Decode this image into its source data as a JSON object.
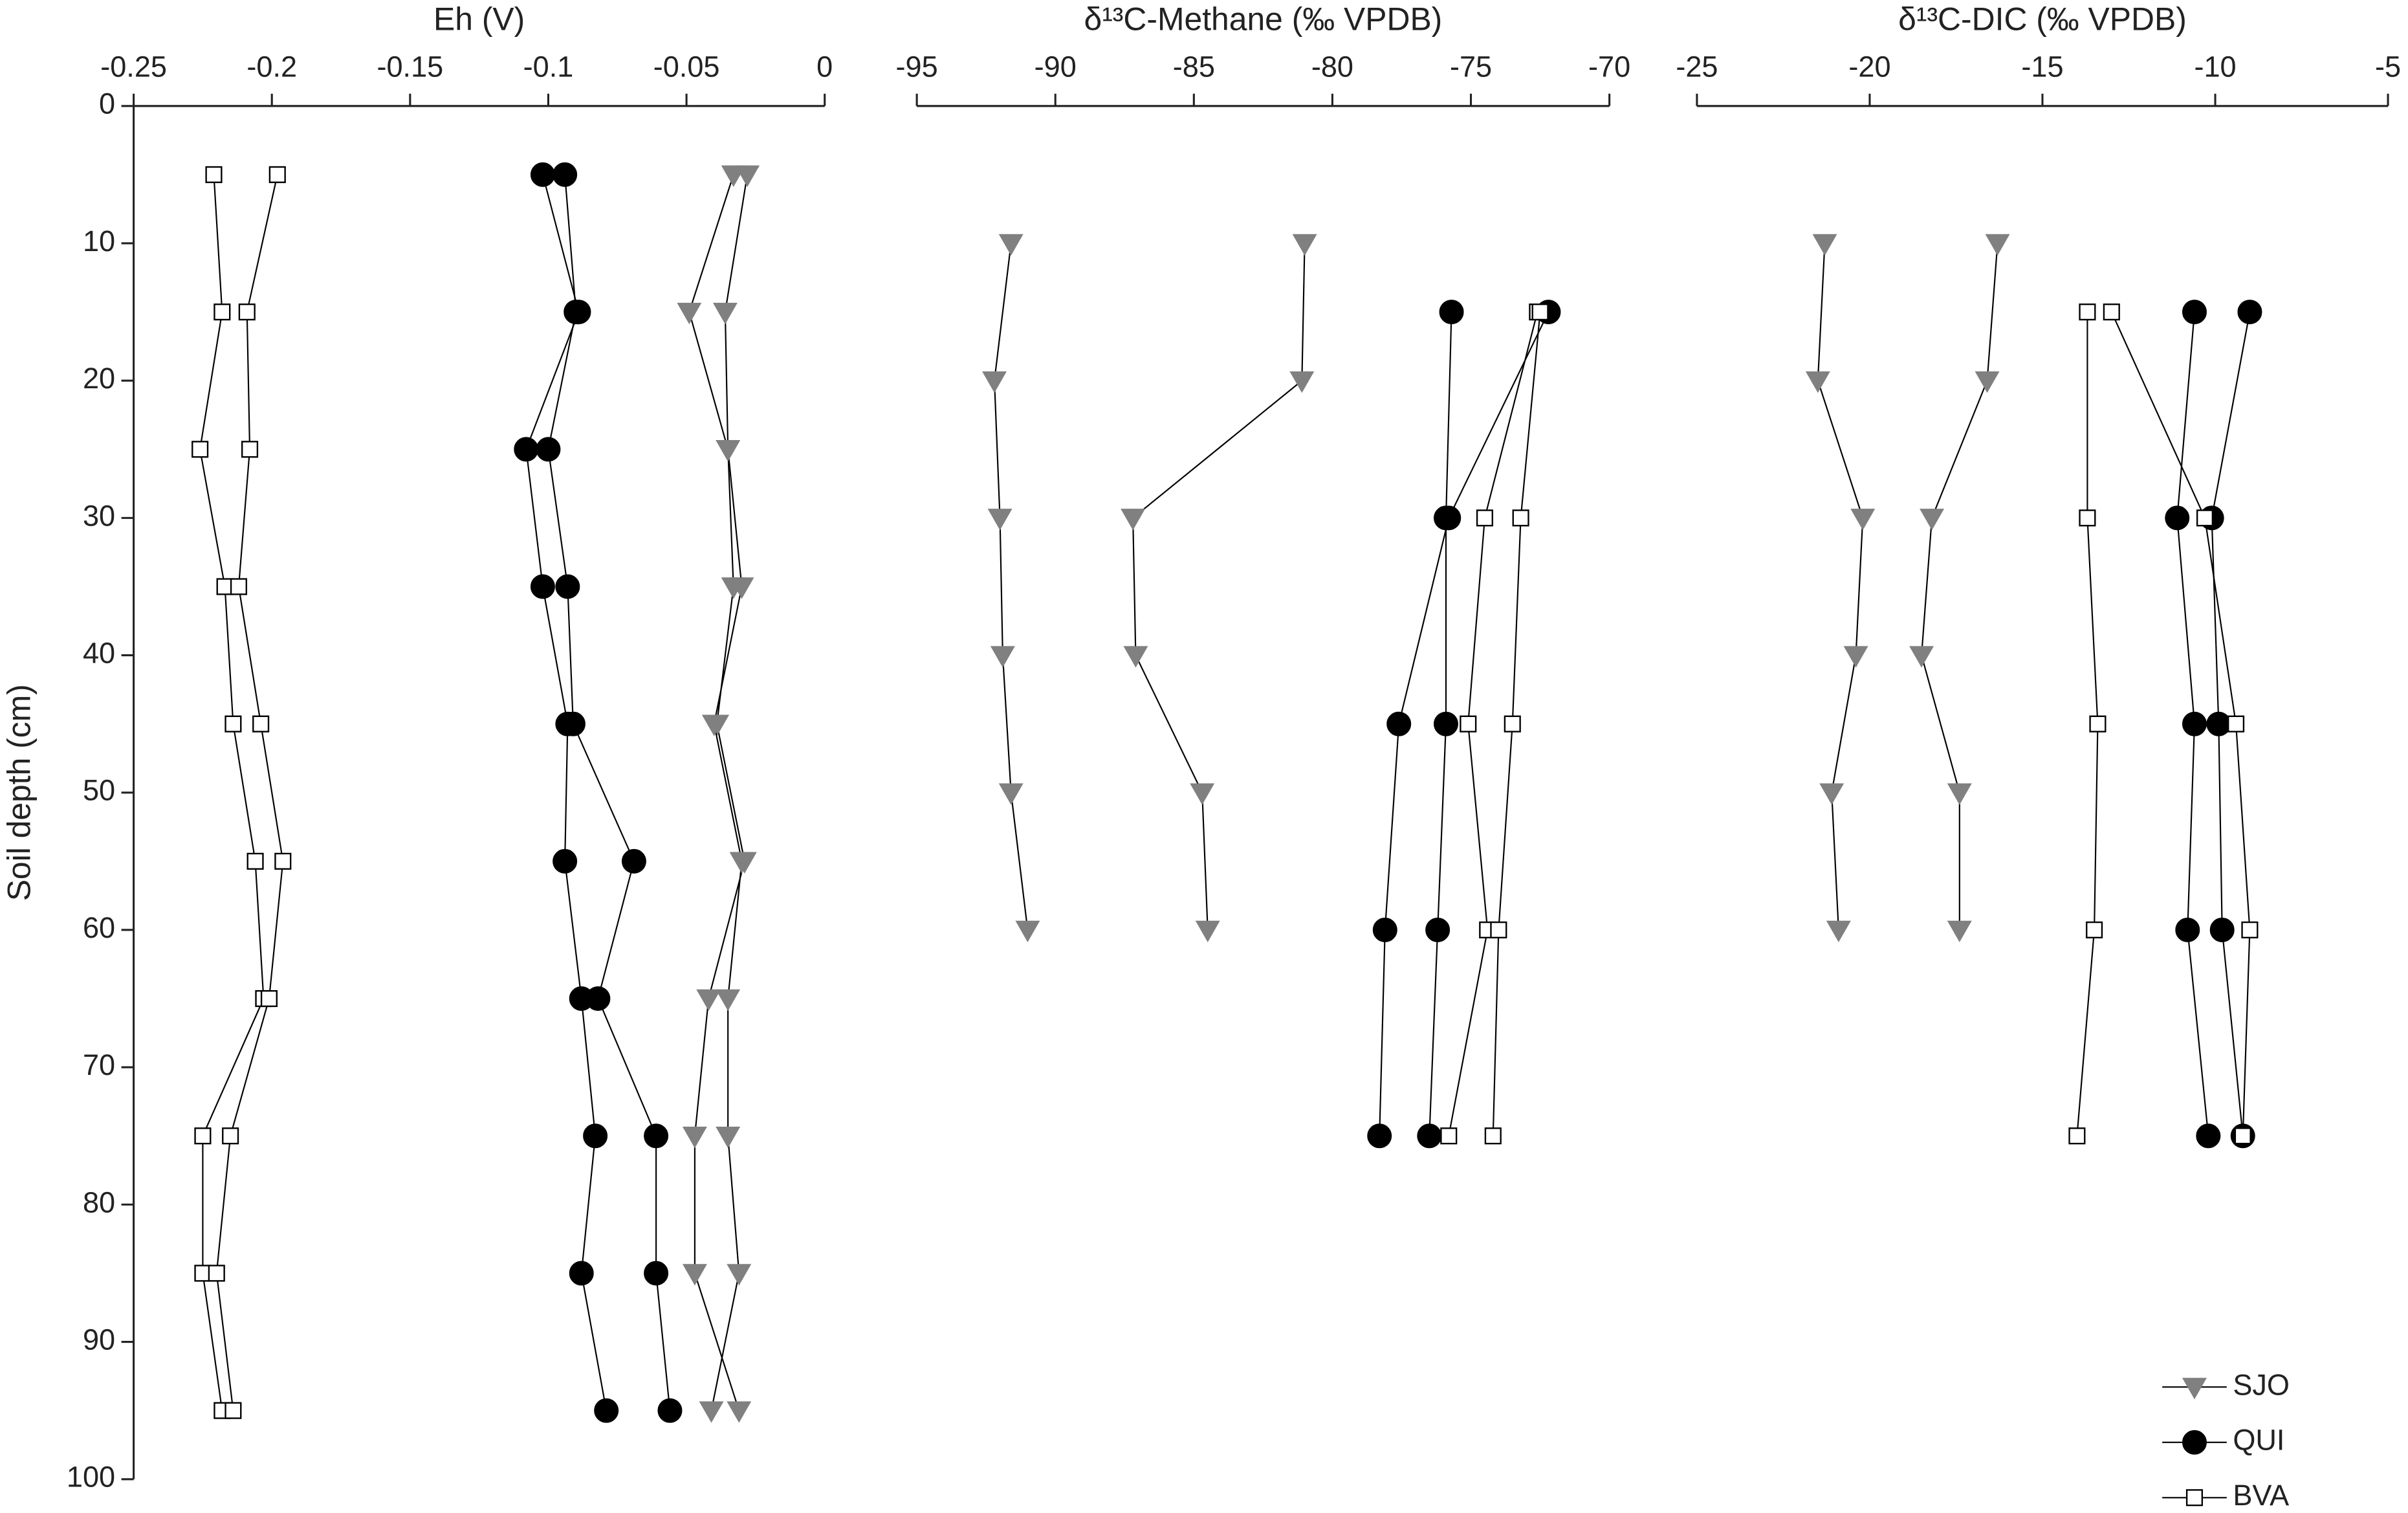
{
  "y_axis": {
    "label": "Soil depth (cm)",
    "ylim": [
      0,
      100
    ],
    "yticks": [
      0,
      10,
      20,
      30,
      40,
      50,
      60,
      70,
      80,
      90,
      100
    ],
    "reversed": true
  },
  "sites": [
    {
      "name": "SJO",
      "marker": "triangle-down",
      "color": "#808080"
    },
    {
      "name": "QUI",
      "marker": "circle",
      "color": "#000000"
    },
    {
      "name": "BVA",
      "marker": "square",
      "color": "#ffffff"
    }
  ],
  "legend_position": "lower right",
  "chart_data": [
    {
      "type": "line",
      "title": "Eh (V)",
      "xlim": [
        -0.25,
        0
      ],
      "xticks": [
        -0.25,
        -0.2,
        -0.15,
        -0.1,
        -0.05,
        0
      ],
      "series": [
        {
          "profiles": [
            {
              "values": [
                -0.033,
                -0.049,
                -0.035,
                -0.033,
                -0.039,
                -0.029,
                -0.042,
                -0.047,
                -0.047,
                -0.031
              ],
              "depths": [
                5,
                15,
                25,
                35,
                45,
                55,
                65,
                75,
                85,
                95
              ]
            },
            {
              "values": [
                -0.028,
                -0.036,
                -0.035,
                -0.03,
                -0.04,
                -0.03,
                -0.035,
                -0.035,
                -0.031,
                -0.041
              ],
              "depths": [
                5,
                15,
                25,
                35,
                45,
                55,
                65,
                75,
                85,
                95
              ]
            }
          ]
        },
        {
          "profiles": [
            {
              "values": [
                -0.102,
                -0.089,
                -0.108,
                -0.102,
                -0.093,
                -0.094,
                -0.088,
                -0.083,
                -0.088,
                -0.079
              ],
              "depths": [
                5,
                15,
                25,
                35,
                45,
                55,
                65,
                75,
                85,
                95
              ]
            },
            {
              "values": [
                -0.094,
                -0.09,
                -0.1,
                -0.093,
                -0.091,
                -0.069,
                -0.082,
                -0.061,
                -0.061,
                -0.056
              ],
              "depths": [
                5,
                15,
                25,
                35,
                45,
                55,
                65,
                75,
                85,
                95
              ]
            }
          ]
        },
        {
          "profiles": [
            {
              "values": [
                -0.221,
                -0.218,
                -0.226,
                -0.217,
                -0.214,
                -0.206,
                -0.203,
                -0.225,
                -0.225,
                -0.218
              ],
              "depths": [
                5,
                15,
                25,
                35,
                45,
                55,
                65,
                75,
                85,
                95
              ]
            },
            {
              "values": [
                -0.198,
                -0.209,
                -0.208,
                -0.212,
                -0.204,
                -0.196,
                -0.201,
                -0.215,
                -0.22,
                -0.214
              ],
              "depths": [
                5,
                15,
                25,
                35,
                45,
                55,
                65,
                75,
                85,
                95
              ]
            }
          ]
        }
      ]
    },
    {
      "type": "line",
      "title": "δ¹³C-Methane (‰ VPDB)",
      "xlim": [
        -95,
        -70
      ],
      "xticks": [
        -95,
        -90,
        -85,
        -80,
        -75,
        -70
      ],
      "series": [
        {
          "profiles": [
            {
              "values": [
                -91.6,
                -92.2,
                -92.0,
                -91.9,
                -91.6,
                -91.0
              ],
              "depths": [
                10,
                20,
                30,
                40,
                50,
                60
              ]
            },
            {
              "values": [
                -81.0,
                -81.1,
                -87.2,
                -87.1,
                -84.7,
                -84.5
              ],
              "depths": [
                10,
                20,
                30,
                40,
                50,
                60
              ]
            }
          ]
        },
        {
          "profiles": [
            {
              "values": [
                -75.7,
                -75.9,
                -75.9,
                -76.2,
                -76.5
              ],
              "depths": [
                15,
                30,
                45,
                60,
                75
              ]
            },
            {
              "values": [
                -72.2,
                -75.8,
                -77.6,
                -78.1,
                -78.3
              ],
              "depths": [
                15,
                30,
                45,
                60,
                75
              ]
            }
          ]
        },
        {
          "profiles": [
            {
              "values": [
                -72.6,
                -74.5,
                -75.1,
                -74.4,
                -75.8
              ],
              "depths": [
                15,
                30,
                45,
                60,
                75
              ]
            },
            {
              "values": [
                -72.5,
                -73.2,
                -73.5,
                -74.0,
                -74.2
              ],
              "depths": [
                15,
                30,
                45,
                60,
                75
              ]
            }
          ]
        }
      ]
    },
    {
      "type": "line",
      "title": "δ¹³C-DIC (‰ VPDB)",
      "xlim": [
        -25,
        -5
      ],
      "xticks": [
        -25,
        -20,
        -15,
        -10,
        -5
      ],
      "series": [
        {
          "profiles": [
            {
              "values": [
                -21.3,
                -21.5,
                -20.2,
                -20.4,
                -21.1,
                -20.9
              ],
              "depths": [
                10,
                20,
                30,
                40,
                50,
                60
              ]
            },
            {
              "values": [
                -16.3,
                -16.6,
                -18.2,
                -18.5,
                -17.4,
                -17.4
              ],
              "depths": [
                10,
                20,
                30,
                40,
                50,
                60
              ]
            }
          ]
        },
        {
          "profiles": [
            {
              "values": [
                -10.6,
                -11.1,
                -10.6,
                -10.8,
                -10.2
              ],
              "depths": [
                15,
                30,
                45,
                60,
                75
              ]
            },
            {
              "values": [
                -9.0,
                -10.1,
                -9.9,
                -9.8,
                -9.2
              ],
              "depths": [
                15,
                30,
                45,
                60,
                75
              ]
            }
          ]
        },
        {
          "profiles": [
            {
              "values": [
                -13.7,
                -13.7,
                -13.4,
                -13.5,
                -14.0
              ],
              "depths": [
                15,
                30,
                45,
                60,
                75
              ]
            },
            {
              "values": [
                -13.0,
                -10.3,
                -9.4,
                -9.0,
                -9.2
              ],
              "depths": [
                15,
                30,
                45,
                60,
                75
              ]
            }
          ]
        }
      ]
    }
  ]
}
